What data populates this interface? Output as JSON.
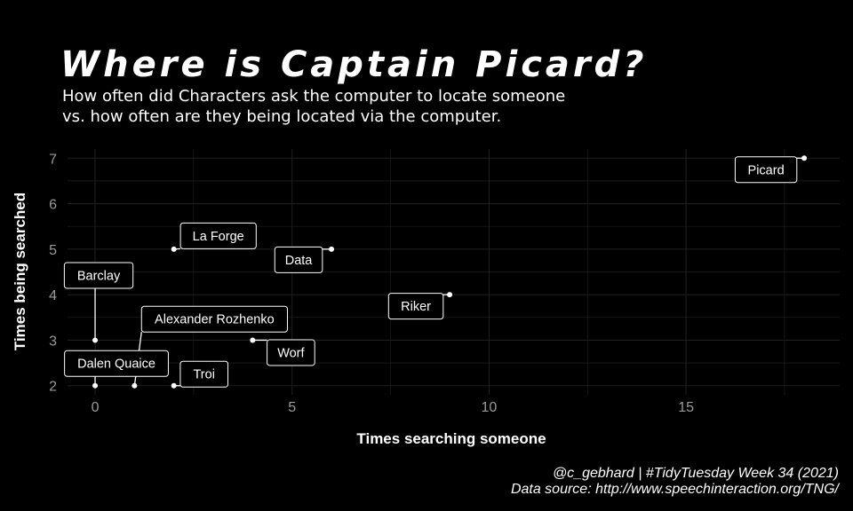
{
  "title": "Where is Captain Picard?",
  "subtitle_line1": "How often did Characters ask the computer to locate someone",
  "subtitle_line2": "vs. how often are they being located via the computer.",
  "caption_line1": "@c_gebhard | #TidyTuesday Week 34 (2021)",
  "caption_line2": "Data source: http://www.speechinteraction.org/TNG/",
  "chart_data": {
    "type": "scatter",
    "xlabel": "Times searching someone",
    "ylabel": "Times being searched",
    "xlim": [
      -0.7,
      18.9
    ],
    "ylim": [
      1.8,
      7.2
    ],
    "x_ticks": [
      0,
      5,
      10,
      15
    ],
    "y_ticks": [
      2,
      3,
      4,
      5,
      6,
      7
    ],
    "grid": true,
    "points": [
      {
        "label": "Picard",
        "x": 18,
        "y": 7
      },
      {
        "label": "La Forge",
        "x": 2,
        "y": 5
      },
      {
        "label": "Data",
        "x": 6,
        "y": 5
      },
      {
        "label": "Barclay",
        "x": 0,
        "y": 3
      },
      {
        "label": "Riker",
        "x": 9,
        "y": 4
      },
      {
        "label": "Alexander Rozhenko",
        "x": 1,
        "y": 2
      },
      {
        "label": "Worf",
        "x": 4,
        "y": 3
      },
      {
        "label": "Dalen Quaice",
        "x": 0,
        "y": 2
      },
      {
        "label": "Troi",
        "x": 2,
        "y": 2
      }
    ],
    "colors": {
      "background": "#000000",
      "text": "#ffffff",
      "grid": "#1e1e1e",
      "tick": "#9a9a9a"
    }
  }
}
